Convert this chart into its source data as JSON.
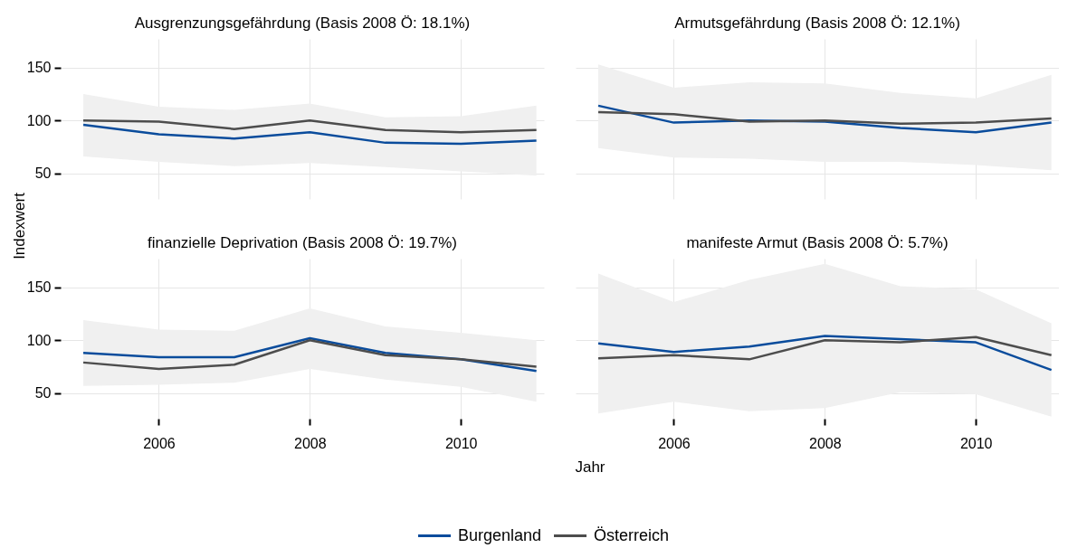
{
  "chart_data": [
    {
      "type": "line",
      "title": "Ausgrenzungsgefährdung (Basis 2008 Ö: 18.1%)",
      "ylabel": "Indexwert",
      "x": [
        2005,
        2006,
        2007,
        2008,
        2009,
        2010,
        2011
      ],
      "xlim": [
        2004.7,
        2011.1
      ],
      "ylim": [
        26,
        177
      ],
      "xticks": [
        2006,
        2008,
        2010
      ],
      "yticks": [
        50,
        100,
        150
      ],
      "grid": true,
      "tick_labels": "y",
      "legend": "bottom",
      "series": [
        {
          "name": "Burgenland",
          "color": "#0a4c9c",
          "values": [
            96,
            87,
            83,
            89,
            79,
            78,
            81
          ],
          "lower": [
            66,
            61,
            57,
            60,
            56,
            52,
            48
          ],
          "upper": [
            125,
            113,
            110,
            116,
            103,
            104,
            114
          ]
        },
        {
          "name": "Österreich",
          "color": "#4d4d4d",
          "values": [
            100,
            99,
            92,
            100,
            91,
            89,
            91
          ]
        }
      ]
    },
    {
      "type": "line",
      "title": "Armutsgefährdung (Basis 2008 Ö: 12.1%)",
      "x": [
        2005,
        2006,
        2007,
        2008,
        2009,
        2010,
        2011
      ],
      "xlim": [
        2004.7,
        2011.1
      ],
      "ylim": [
        26,
        177
      ],
      "xticks": [
        2006,
        2008,
        2010
      ],
      "yticks": [
        50,
        100,
        150
      ],
      "grid": true,
      "tick_labels": false,
      "series": [
        {
          "color": "#0a4c9c",
          "values": [
            114,
            98,
            100,
            99,
            93,
            89,
            98
          ],
          "lower": [
            74,
            65,
            64,
            61,
            61,
            58,
            53
          ],
          "upper": [
            153,
            131,
            136,
            135,
            126,
            121,
            143
          ]
        },
        {
          "color": "#4d4d4d",
          "values": [
            108,
            106,
            99,
            100,
            97,
            98,
            102
          ]
        }
      ]
    },
    {
      "type": "line",
      "title": "finanzielle Deprivation (Basis 2008 Ö: 19.7%)",
      "xlabel": "Jahr",
      "x": [
        2005,
        2006,
        2007,
        2008,
        2009,
        2010,
        2011
      ],
      "xlim": [
        2004.7,
        2011.1
      ],
      "ylim": [
        26,
        177
      ],
      "xticks": [
        2006,
        2008,
        2010
      ],
      "yticks": [
        50,
        100,
        150
      ],
      "grid": true,
      "series": [
        {
          "color": "#0a4c9c",
          "values": [
            88,
            84,
            84,
            102,
            88,
            82,
            71
          ],
          "lower": [
            57,
            58,
            60,
            73,
            63,
            56,
            42
          ],
          "upper": [
            119,
            110,
            109,
            130,
            113,
            107,
            100
          ]
        },
        {
          "color": "#4d4d4d",
          "values": [
            79,
            73,
            77,
            100,
            86,
            82,
            75
          ]
        }
      ]
    },
    {
      "type": "line",
      "title": "manifeste Armut (Basis 2008 Ö: 5.7%)",
      "x": [
        2005,
        2006,
        2007,
        2008,
        2009,
        2010,
        2011
      ],
      "xlim": [
        2004.7,
        2011.1
      ],
      "ylim": [
        26,
        177
      ],
      "xticks": [
        2006,
        2008,
        2010
      ],
      "yticks": [
        50,
        100,
        150
      ],
      "grid": true,
      "tick_labels": "x",
      "series": [
        {
          "color": "#0a4c9c",
          "values": [
            97,
            89,
            94,
            104,
            101,
            98,
            72
          ],
          "lower": [
            31,
            42,
            33,
            36,
            51,
            49,
            28
          ],
          "upper": [
            163,
            136,
            157,
            172,
            151,
            148,
            116
          ]
        },
        {
          "color": "#4d4d4d",
          "values": [
            83,
            86,
            82,
            100,
            98,
            103,
            86
          ]
        }
      ]
    }
  ]
}
